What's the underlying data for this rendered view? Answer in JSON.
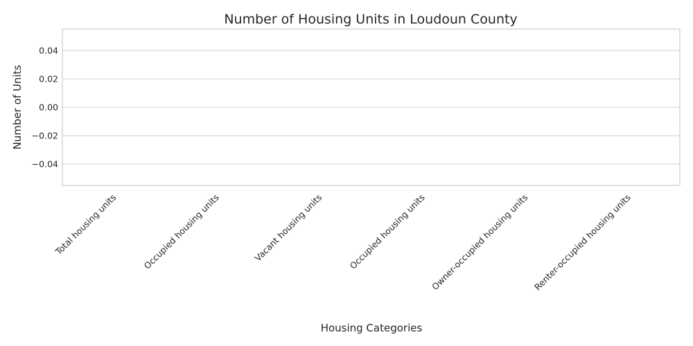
{
  "chart_data": {
    "type": "bar",
    "title": "Number of Housing Units in Loudoun County",
    "xlabel": "Housing Categories",
    "ylabel": "Number of Units",
    "categories": [
      "Total housing units",
      "Occupied housing units",
      "Vacant housing units",
      "Occupied housing units",
      "Owner-occupied housing units",
      "Renter-occupied housing units"
    ],
    "values": [
      0,
      0,
      0,
      0,
      0,
      0
    ],
    "ylim": [
      -0.055,
      0.055
    ],
    "yticks": [
      0.04,
      0.02,
      0.0,
      -0.02,
      -0.04
    ],
    "ytick_labels": [
      "0.04",
      "0.02",
      "0.00",
      "−0.02",
      "−0.04"
    ],
    "grid": "horizontal",
    "legend": "none",
    "bar_color": "#4c72b0"
  }
}
